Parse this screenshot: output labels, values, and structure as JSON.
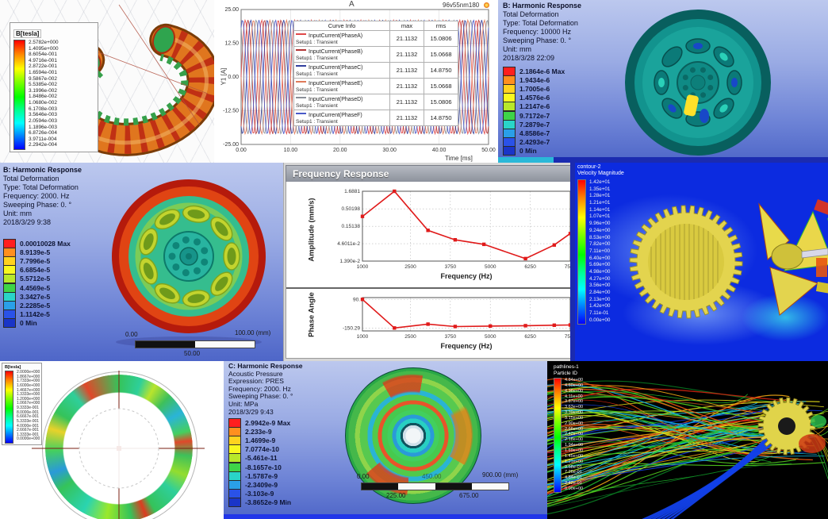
{
  "colors": {
    "ansys_scale10": [
      "#ff1f1f",
      "#ff8f1f",
      "#ffd21f",
      "#f8f81f",
      "#b8e82a",
      "#3ed448",
      "#2ad4c8",
      "#2a9fe8",
      "#2a52e8",
      "#1a35c8"
    ],
    "stream_palette": [
      "#1fc12e",
      "#53d31f",
      "#a8e01c",
      "#e4df19",
      "#f0a713",
      "#e85511",
      "#d32410",
      "#17b8e0",
      "#1240e0",
      "#0a7a22"
    ],
    "separator_navy": "#1b2bb0",
    "separator_blue": "#2136e8",
    "curve_red": "#e01a1a"
  },
  "panel_maxwell": {
    "legend_title": "B[tesla]",
    "legend_values": [
      "2.5782e+000",
      "1.4095e+000",
      "8.6054e-001",
      "4.9716e-001",
      "2.8722e-001",
      "1.6594e-001",
      "9.5867e-002",
      "5.5385e-002",
      "3.1996e-002",
      "1.8486e-002",
      "1.0680e-002",
      "6.1708e-003",
      "3.5646e-003",
      "2.0594e-003",
      "1.1896e-003",
      "6.8726e-004",
      "3.9711e-004",
      "2.2942e-004"
    ]
  },
  "panel_currents": {
    "corner_label": "A",
    "model_label": "96v55nm180",
    "table": {
      "headers": [
        "Curve Info",
        "max",
        "rms"
      ],
      "rows": [
        {
          "name": "InputCurrent(PhaseA)",
          "setup": "Setup1 : Transient",
          "max": "21.1132",
          "rms": "15.0806",
          "color": "#e04848"
        },
        {
          "name": "InputCurrent(PhaseB)",
          "setup": "Setup1 : Transient",
          "max": "21.1132",
          "rms": "15.0668",
          "color": "#b23535"
        },
        {
          "name": "InputCurrent(PhaseC)",
          "setup": "Setup1 : Transient",
          "max": "21.1132",
          "rms": "14.8750",
          "color": "#323f9e"
        },
        {
          "name": "InputCurrent(PhaseE)",
          "setup": "Setup1 : Transient",
          "max": "21.1132",
          "rms": "15.0668",
          "color": "#e07a5a"
        },
        {
          "name": "InputCurrent(PhaseD)",
          "setup": "Setup1 : Transient",
          "max": "21.1132",
          "rms": "15.0806",
          "color": "#8a8f98"
        },
        {
          "name": "InputCurrent(PhaseF)",
          "setup": "Setup1 : Transient",
          "max": "21.1132",
          "rms": "14.8750",
          "color": "#4a5ac8"
        }
      ]
    },
    "chart_data": {
      "type": "line",
      "title": "96v55nm180",
      "xlabel": "Time [ms]",
      "ylabel": "Y1 [A]",
      "xlim": [
        0,
        50
      ],
      "ylim": [
        -25,
        25
      ],
      "x_tick_values": [
        0,
        10,
        20,
        30,
        40,
        50
      ],
      "x_tick_labels": [
        "0.00",
        "10.00",
        "20.00",
        "30.00",
        "40.00",
        "50.00"
      ],
      "y_tick_values": [
        25,
        12.5,
        0,
        -12.5,
        -25
      ],
      "y_tick_labels": [
        "25.00",
        "12.50",
        "0.00",
        "-12.50",
        "-25.00"
      ],
      "amplitude": 21.1132,
      "period_ms": 3.3333,
      "series": [
        {
          "name": "InputCurrent(PhaseA)",
          "phase_deg": 0,
          "color": "#e04848"
        },
        {
          "name": "InputCurrent(PhaseB)",
          "phase_deg": -60,
          "color": "#b23535"
        },
        {
          "name": "InputCurrent(PhaseC)",
          "phase_deg": -120,
          "color": "#323f9e"
        },
        {
          "name": "InputCurrent(PhaseE)",
          "phase_deg": -180,
          "color": "#e07a5a"
        },
        {
          "name": "InputCurrent(PhaseD)",
          "phase_deg": -240,
          "color": "#8a8f98"
        },
        {
          "name": "InputCurrent(PhaseF)",
          "phase_deg": -300,
          "color": "#4a5ac8"
        }
      ]
    }
  },
  "panel_harmonic10000": {
    "info_lines": [
      "B: Harmonic Response",
      "Total Deformation",
      "Type: Total Deformation",
      "Frequency: 10000 Hz",
      "Sweeping Phase: 0. °",
      "Unit: mm",
      "2018/3/28 22:09"
    ],
    "legend_values": [
      "2.1864e-6 Max",
      "1.9434e-6",
      "1.7005e-6",
      "1.4576e-6",
      "1.2147e-6",
      "9.7172e-7",
      "7.2879e-7",
      "4.8586e-7",
      "2.4293e-7",
      "0 Min"
    ]
  },
  "panel_harmonic2000": {
    "info_lines": [
      "B: Harmonic Response",
      "Total Deformation",
      "Type: Total Deformation",
      "Frequency: 2000. Hz",
      "Sweeping Phase: 0. °",
      "Unit: mm",
      "2018/3/29 9:38"
    ],
    "legend_values": [
      "0.00010028 Max",
      "8.9139e-5",
      "7.7996e-5",
      "6.6854e-5",
      "5.5712e-5",
      "4.4569e-5",
      "3.3427e-5",
      "2.2285e-5",
      "1.1142e-5",
      "0 Min"
    ],
    "scale_bar": {
      "left": "0.00",
      "right": "100.00 (mm)",
      "mid": "50.00"
    }
  },
  "panel_freq_response": {
    "window_title": "Frequency Response",
    "amplitude_chart": {
      "type": "line",
      "ylabel": "Amplitude (mm/s)",
      "xlabel": "Frequency (Hz)",
      "y_scale": "log",
      "y_tick_labels": [
        "1.6881",
        "0.50198",
        "0.15138",
        "4.6011e-2",
        "1.390e-2"
      ],
      "y_tick_values": [
        1.6881,
        0.50198,
        0.15138,
        0.046011,
        0.0139
      ],
      "x_tick_labels": [
        "1000",
        "2500",
        "3750",
        "5000",
        "6250",
        "7500"
      ],
      "x_tick_values": [
        1000,
        2500,
        3750,
        5000,
        6250,
        7500
      ],
      "xlim": [
        1000,
        7500
      ],
      "x": [
        1000,
        2000,
        3050,
        3900,
        4800,
        6100,
        7000,
        7500
      ],
      "y": [
        0.3,
        1.6881,
        0.115,
        0.06,
        0.044,
        0.0165,
        0.042,
        0.092
      ],
      "line_color": "#e01a1a"
    },
    "phase_chart": {
      "type": "line",
      "ylabel": "Phase Angle",
      "xlabel": "Frequency (Hz)",
      "y_tick_labels": [
        "90.",
        "-150.29"
      ],
      "y_tick_values": [
        90,
        -150.29
      ],
      "ylim": [
        -175,
        105
      ],
      "x_tick_labels": [
        "1000",
        "2500",
        "3750",
        "5000",
        "6250",
        "7500"
      ],
      "x_tick_values": [
        1000,
        2500,
        3750,
        5000,
        6250,
        7500
      ],
      "xlim": [
        1000,
        7500
      ],
      "x": [
        1000,
        2000,
        3050,
        3900,
        5000,
        6100,
        7000,
        7500
      ],
      "y": [
        90,
        -150.29,
        -118,
        -138,
        -134,
        -131,
        -127,
        -125
      ],
      "line_color": "#e01a1a"
    }
  },
  "panel_cfd": {
    "legend_title_lines": [
      "contour-2",
      "Velocity Magnitude"
    ],
    "legend_values": [
      "1.42e+01",
      "1.35e+01",
      "1.28e+01",
      "1.21e+01",
      "1.14e+01",
      "1.07e+01",
      "9.96e+00",
      "9.24e+00",
      "8.53e+00",
      "7.82e+00",
      "7.11e+00",
      "6.40e+00",
      "5.69e+00",
      "4.98e+00",
      "4.27e+00",
      "3.56e+00",
      "2.84e+00",
      "2.13e+00",
      "1.42e+00",
      "7.11e-01",
      "0.00e+00"
    ]
  },
  "panel_rotor": {
    "legend_title": "B[tesla]",
    "legend_values": [
      "2.0000e+000",
      "1.8667e+000",
      "1.7333e+000",
      "1.6000e+000",
      "1.4667e+000",
      "1.3333e+000",
      "1.2000e+000",
      "1.0667e+000",
      "9.3333e-001",
      "8.0000e-001",
      "6.6667e-001",
      "5.3333e-001",
      "4.0000e-001",
      "2.6667e-001",
      "1.3333e-001",
      "0.0000e+000"
    ]
  },
  "panel_acoustic": {
    "info_lines": [
      "C: Harmonic Response",
      "Acoustic Pressure",
      "Expression: PRES",
      "Frequency: 2000. Hz",
      "Sweeping Phase: 0. °",
      "Unit: MPa",
      "2018/3/29 9:43"
    ],
    "legend_values": [
      "2.9942e-9 Max",
      "2.233e-9",
      "1.4699e-9",
      "7.0774e-10",
      "-5.461e-11",
      "-8.1657e-10",
      "-1.5787e-9",
      "-2.3409e-9",
      "-3.103e-9",
      "-3.8652e-9 Min"
    ],
    "scale_bar": {
      "left": "0.00",
      "mid": "450.00",
      "right": "900.00 (mm)",
      "b1": "225.00",
      "b2": "675.00"
    }
  },
  "panel_streamlines": {
    "legend_title_lines": [
      "pathlines-1",
      "Particle ID"
    ],
    "legend_values": [
      "4.84e+00",
      "4.60e+00",
      "4.36e+00",
      "4.11e+00",
      "3.87e+00",
      "3.63e+00",
      "3.39e+00",
      "3.15e+00",
      "2.90e+00",
      "2.66e+00",
      "2.42e+00",
      "2.18e+00",
      "1.94e+00",
      "1.69e+00",
      "1.45e+00",
      "1.21e+00",
      "9.68e-01",
      "7.26e-01",
      "4.84e-01",
      "2.42e-01",
      "0.00e+00"
    ]
  }
}
